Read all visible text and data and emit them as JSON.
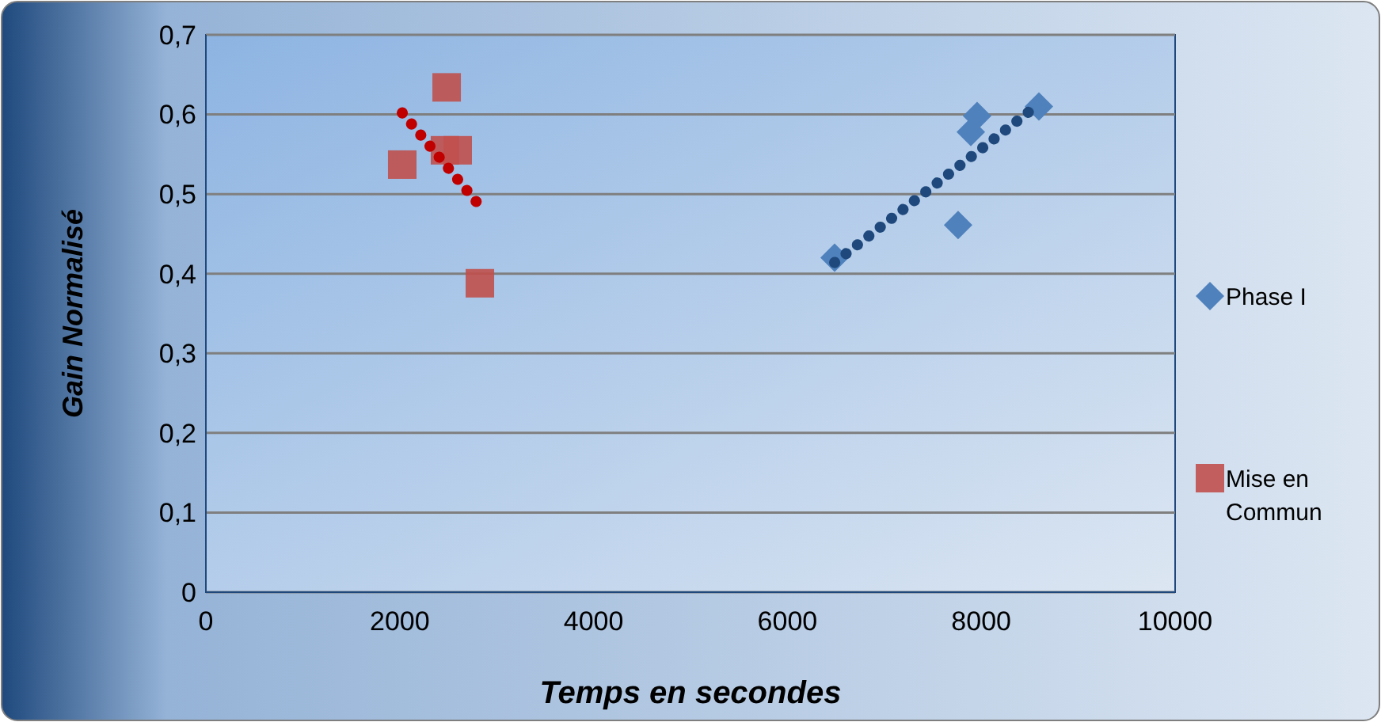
{
  "chart_data": {
    "type": "scatter",
    "xlabel": "Temps en secondes",
    "ylabel": "Gain Normalisé",
    "xlim": [
      0,
      10000
    ],
    "ylim": [
      0,
      0.7
    ],
    "xticks": [
      0,
      2000,
      4000,
      6000,
      8000,
      10000
    ],
    "yticks": [
      {
        "value": 0,
        "label": "0"
      },
      {
        "value": 0.1,
        "label": "0,1"
      },
      {
        "value": 0.2,
        "label": "0,2"
      },
      {
        "value": 0.3,
        "label": "0,3"
      },
      {
        "value": 0.4,
        "label": "0,4"
      },
      {
        "value": 0.5,
        "label": "0,5"
      },
      {
        "value": 0.6,
        "label": "0,6"
      },
      {
        "value": 0.7,
        "label": "0,7"
      }
    ],
    "grid": "y",
    "legend": "right",
    "series": [
      {
        "name": "Phase I",
        "color": "#4f81bd",
        "marker": "diamond",
        "x": [
          6487,
          7761,
          7892,
          7957,
          8595
        ],
        "values": [
          0.42,
          0.461,
          0.578,
          0.598,
          0.61
        ]
      },
      {
        "type": "line",
        "color": "#1f497d",
        "line_style": "dotted",
        "x": [
          6487,
          8595
        ],
        "values": [
          0.414,
          0.613
        ]
      },
      {
        "name": "Mise en Commun",
        "color": "#c0504d",
        "marker": "square",
        "x": [
          2026,
          2484,
          2467,
          2598,
          2827
        ],
        "values": [
          0.537,
          0.634,
          0.555,
          0.555,
          0.388
        ]
      },
      {
        "type": "line",
        "color": "#c00000",
        "line_style": "dotted",
        "x": [
          2026,
          2827
        ],
        "values": [
          0.602,
          0.485
        ]
      }
    ]
  }
}
